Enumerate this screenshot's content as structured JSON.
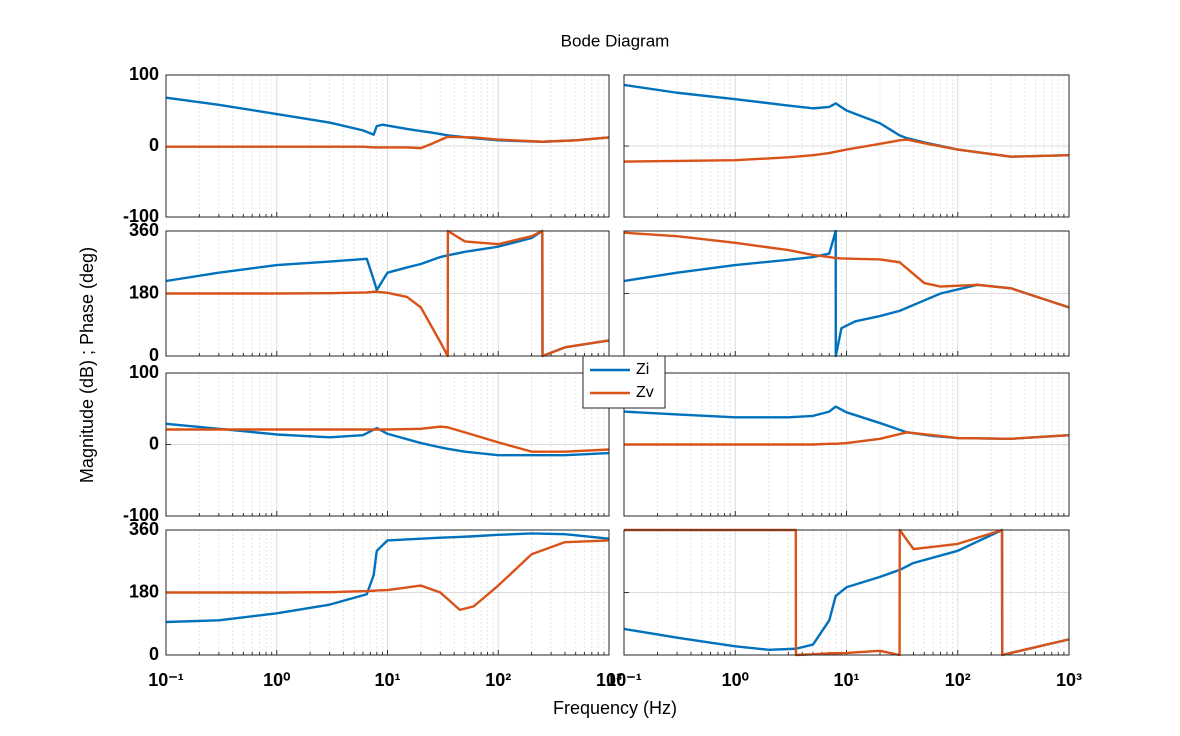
{
  "title": "Bode Diagram",
  "xlabel": "Frequency  (Hz)",
  "ylabel": "Magnitude (dB) ; Phase (deg)",
  "x_axis": {
    "scale": "log",
    "xlim": [
      0.1,
      1000
    ],
    "xticks": [
      {
        "value": 0.1,
        "label": "10⁻¹"
      },
      {
        "value": 1,
        "label": "10⁰"
      },
      {
        "value": 10,
        "label": "10¹"
      },
      {
        "value": 100,
        "label": "10²"
      },
      {
        "value": 1000,
        "label": "10³"
      }
    ],
    "xminorticks": [
      0.2,
      0.3,
      0.4,
      0.5,
      0.6,
      0.7,
      0.8,
      0.9,
      2,
      3,
      4,
      5,
      6,
      7,
      8,
      9,
      20,
      30,
      40,
      50,
      60,
      70,
      80,
      90,
      200,
      300,
      400,
      500,
      600,
      700,
      800,
      900
    ],
    "grid": true
  },
  "chart_data": [
    {
      "type": "line",
      "ylim": [
        -100,
        100
      ],
      "yticks": [
        -100,
        0,
        100
      ],
      "x": [
        0.1,
        0.3,
        1,
        3,
        6,
        7.5,
        8,
        9,
        15,
        20,
        25,
        35,
        60,
        100,
        250,
        500,
        1000
      ],
      "series": [
        {
          "name": "Zi",
          "color": "#0072bd",
          "values": [
            68,
            58,
            45,
            33,
            22,
            16,
            28,
            30,
            24,
            21,
            19,
            15,
            11,
            8,
            6,
            8,
            12
          ]
        },
        {
          "name": "Zv",
          "color": "#d95319",
          "values": [
            -1,
            -1,
            -1,
            -1,
            -1,
            -2,
            -2,
            -2,
            -2,
            -3,
            3,
            13,
            12,
            9,
            6,
            8,
            12
          ]
        }
      ]
    },
    {
      "type": "line",
      "ylim": [
        -100,
        100
      ],
      "yticks": [
        -100,
        0,
        100
      ],
      "x": [
        0.1,
        0.3,
        1,
        3,
        5,
        7,
        8,
        10,
        20,
        30,
        35,
        50,
        100,
        300,
        1000
      ],
      "series": [
        {
          "name": "Zi",
          "color": "#0072bd",
          "values": [
            86,
            75,
            66,
            57,
            53,
            55,
            60,
            50,
            32,
            15,
            11,
            5,
            -5,
            -15,
            -13
          ]
        },
        {
          "name": "Zv",
          "color": "#d95319",
          "values": [
            -22,
            -21,
            -20,
            -16,
            -13,
            -10,
            -8,
            -5,
            3,
            8,
            9,
            4,
            -5,
            -15,
            -13
          ]
        }
      ]
    },
    {
      "type": "line",
      "ylim": [
        0,
        360
      ],
      "yticks": [
        0,
        180,
        360
      ],
      "x": [
        0.1,
        0.3,
        1,
        3,
        6.5,
        7.5,
        8,
        10,
        15,
        20,
        30,
        35,
        35.1,
        50,
        100,
        200,
        250,
        251,
        400,
        1000
      ],
      "series": [
        {
          "name": "Zi",
          "color": "#0072bd",
          "values": [
            216,
            240,
            262,
            272,
            280,
            220,
            190,
            240,
            255,
            265,
            285,
            290,
            290,
            300,
            315,
            340,
            360,
            0,
            25,
            45
          ]
        },
        {
          "name": "Zv",
          "color": "#d95319",
          "values": [
            180,
            180,
            180,
            181,
            183,
            185,
            185,
            182,
            170,
            140,
            40,
            0,
            360,
            330,
            322,
            345,
            360,
            0,
            25,
            45
          ]
        }
      ]
    },
    {
      "type": "line",
      "ylim": [
        0,
        360
      ],
      "yticks": [
        0,
        180,
        360
      ],
      "x": [
        0.1,
        0.3,
        1,
        3,
        5,
        7,
        8,
        8.01,
        9,
        12,
        20,
        30,
        50,
        70,
        150,
        300,
        1000
      ],
      "series": [
        {
          "name": "Zi",
          "color": "#0072bd",
          "values": [
            216,
            240,
            262,
            277,
            285,
            295,
            360,
            0,
            80,
            100,
            115,
            130,
            160,
            180,
            205,
            195,
            140
          ]
        },
        {
          "name": "Zv",
          "color": "#d95319",
          "values": [
            355,
            345,
            326,
            305,
            291,
            285,
            282,
            282,
            281,
            280,
            278,
            270,
            210,
            200,
            205,
            195,
            140
          ]
        }
      ]
    },
    {
      "type": "line",
      "ylim": [
        -100,
        100
      ],
      "yticks": [
        -100,
        0,
        100
      ],
      "x": [
        0.1,
        0.3,
        1,
        3,
        6,
        8,
        10,
        20,
        30,
        35,
        50,
        100,
        200,
        400,
        1000
      ],
      "series": [
        {
          "name": "Zi",
          "color": "#0072bd",
          "values": [
            29,
            22,
            14,
            10,
            13,
            23,
            15,
            2,
            -4,
            -6,
            -10,
            -15,
            -15,
            -15,
            -12
          ]
        },
        {
          "name": "Zv",
          "color": "#d95319",
          "values": [
            21,
            21,
            21,
            21,
            21,
            21,
            21,
            22,
            25,
            24,
            17,
            3,
            -10,
            -10,
            -7
          ]
        }
      ]
    },
    {
      "type": "line",
      "ylim": [
        -100,
        100
      ],
      "yticks": [
        -100,
        0,
        100
      ],
      "x": [
        0.1,
        0.3,
        1,
        3,
        5,
        7,
        8,
        10,
        20,
        35,
        60,
        100,
        300,
        1000
      ],
      "series": [
        {
          "name": "Zi",
          "color": "#0072bd",
          "values": [
            46,
            42,
            38,
            38,
            40,
            46,
            53,
            45,
            30,
            17,
            12,
            9,
            8,
            13
          ]
        },
        {
          "name": "Zv",
          "color": "#d95319",
          "values": [
            0,
            0,
            0,
            0,
            0,
            1,
            1,
            2,
            8,
            17,
            13,
            9,
            8,
            13
          ]
        }
      ]
    },
    {
      "type": "line",
      "ylim": [
        0,
        360
      ],
      "yticks": [
        0,
        180,
        360
      ],
      "x": [
        0.1,
        0.3,
        1,
        3,
        6.5,
        7.5,
        8,
        10,
        20,
        30,
        45,
        60,
        100,
        200,
        400,
        1000
      ],
      "series": [
        {
          "name": "Zi",
          "color": "#0072bd",
          "values": [
            95,
            100,
            120,
            145,
            175,
            230,
            300,
            330,
            335,
            338,
            340,
            342,
            346,
            350,
            348,
            335
          ]
        },
        {
          "name": "Zv",
          "color": "#d95319",
          "values": [
            180,
            180,
            180,
            181,
            184,
            185,
            186,
            187,
            200,
            180,
            130,
            140,
            200,
            290,
            325,
            330
          ]
        }
      ]
    },
    {
      "type": "line",
      "ylim": [
        0,
        360
      ],
      "yticks": [
        0,
        180,
        360
      ],
      "x": [
        0.1,
        0.3,
        1,
        2,
        3.5,
        3.51,
        5,
        7,
        8,
        10,
        20,
        30,
        30.1,
        40,
        100,
        250,
        251,
        1000
      ],
      "series": [
        {
          "name": "Zi",
          "color": "#0072bd",
          "values": [
            75,
            50,
            25,
            15,
            18,
            18,
            30,
            100,
            170,
            195,
            225,
            245,
            245,
            265,
            300,
            360,
            0,
            45
          ]
        },
        {
          "name": "Zv",
          "color": "#d95319",
          "values": [
            360,
            360,
            360,
            360,
            360,
            0,
            2,
            5,
            5,
            6,
            12,
            0,
            360,
            305,
            320,
            360,
            0,
            45
          ]
        }
      ]
    }
  ]
}
